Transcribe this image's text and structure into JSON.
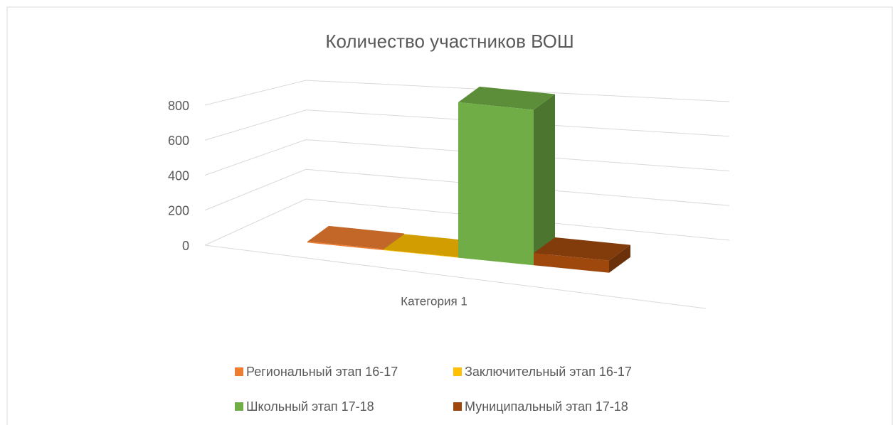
{
  "chart_data": {
    "type": "bar3d",
    "title": "Количество участников ВОШ",
    "categories": [
      "Категория 1"
    ],
    "series": [
      {
        "name": "Региональный этап 16-17",
        "color": "#ed7d31",
        "values": [
          5
        ]
      },
      {
        "name": "Заключительный этап 16-17",
        "color": "#ffc000",
        "values": [
          2
        ]
      },
      {
        "name": "Школьный этап 17-18",
        "color": "#70ad47",
        "values": [
          700
        ]
      },
      {
        "name": "Муниципальный этап 17-18",
        "color": "#9e480e",
        "values": [
          55
        ]
      }
    ],
    "ylim": [
      0,
      800
    ],
    "yticks": [
      0,
      200,
      400,
      600,
      800
    ],
    "grid": true
  }
}
